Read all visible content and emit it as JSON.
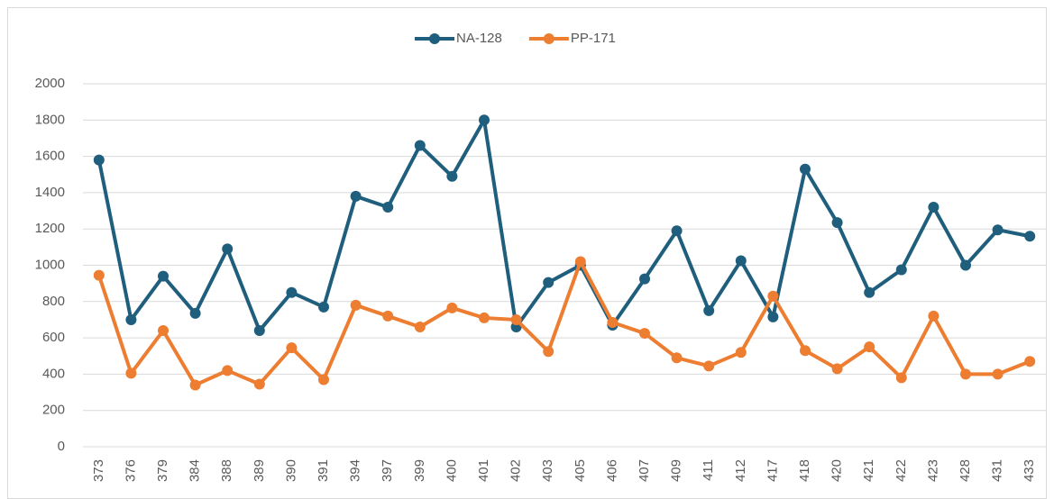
{
  "chart_data": {
    "type": "line",
    "categories": [
      "373",
      "376",
      "379",
      "384",
      "388",
      "389",
      "390",
      "391",
      "394",
      "397",
      "399",
      "400",
      "401",
      "402",
      "403",
      "405",
      "406",
      "407",
      "409",
      "411",
      "412",
      "417",
      "418",
      "420",
      "421",
      "422",
      "423",
      "428",
      "431",
      "433"
    ],
    "series": [
      {
        "name": "NA-128",
        "color": "#1f5e7d",
        "values": [
          1580,
          700,
          940,
          735,
          1090,
          640,
          850,
          770,
          1380,
          1320,
          1660,
          1490,
          1800,
          660,
          905,
          1000,
          670,
          925,
          1190,
          750,
          1025,
          715,
          1530,
          1235,
          850,
          975,
          1320,
          1000,
          1195,
          1160
        ]
      },
      {
        "name": "PP-171",
        "color": "#ed7d31",
        "values": [
          945,
          405,
          640,
          340,
          420,
          345,
          545,
          370,
          780,
          720,
          660,
          765,
          710,
          700,
          525,
          1020,
          685,
          625,
          490,
          445,
          520,
          830,
          530,
          430,
          550,
          380,
          720,
          400,
          400,
          470
        ]
      }
    ],
    "ylim": [
      0,
      2000
    ],
    "yticks": [
      0,
      200,
      400,
      600,
      800,
      1000,
      1200,
      1400,
      1600,
      1800,
      2000
    ],
    "grid": true,
    "legend": "top"
  }
}
